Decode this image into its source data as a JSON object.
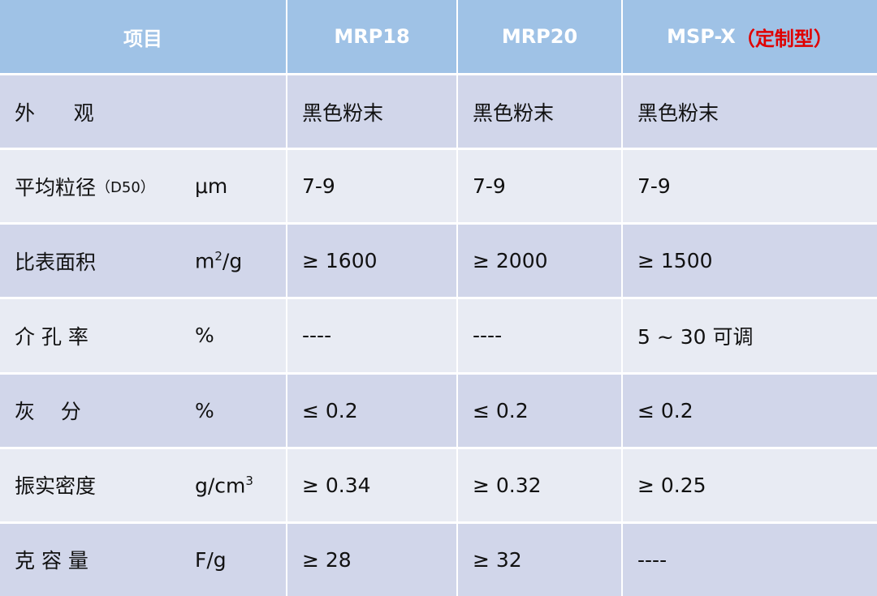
{
  "table": {
    "header": {
      "item": "项目",
      "columns": [
        {
          "name": "MRP18"
        },
        {
          "name": "MRP20"
        },
        {
          "name": "MSP-X",
          "note": "（定制型）"
        }
      ]
    },
    "rows": [
      {
        "label": "外      观",
        "values": [
          "黑色粉末",
          "黑色粉末",
          "黑色粉末"
        ]
      },
      {
        "label": "平均粒径",
        "label_note": "（D50）",
        "unit": {
          "text": "μm"
        },
        "values": [
          "7-9",
          "7-9",
          "7-9"
        ]
      },
      {
        "label": "比表面积",
        "unit": {
          "text": "m",
          "sup": "2",
          "after": "/g"
        },
        "values": [
          "≥ 1600",
          "≥ 2000",
          "≥ 1500"
        ]
      },
      {
        "label": "介 孔 率",
        "unit": {
          "text": "%"
        },
        "values": [
          "----",
          "----",
          "5 ~ 30 可调"
        ]
      },
      {
        "label": "灰    分",
        "unit": {
          "text": "%"
        },
        "values": [
          "≤ 0.2",
          "≤ 0.2",
          "≤ 0.2"
        ]
      },
      {
        "label": "振实密度",
        "unit": {
          "text": "g/cm",
          "sup": "3"
        },
        "values": [
          "≥ 0.34",
          "≥ 0.32",
          "≥ 0.25"
        ]
      },
      {
        "label": "克 容 量",
        "unit": {
          "text": "F/g"
        },
        "values": [
          "≥ 28",
          "≥ 32",
          "----"
        ]
      }
    ]
  }
}
